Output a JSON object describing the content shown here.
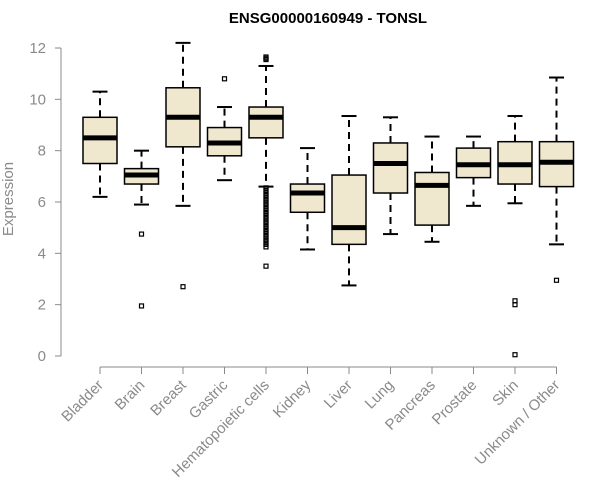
{
  "chart_data": {
    "type": "boxplot",
    "title": "ENSG00000160949 - TONSL",
    "ylabel": "Expression",
    "xlabel": "",
    "ylim": [
      0,
      12
    ],
    "yticks": [
      0,
      2,
      4,
      6,
      8,
      10,
      12
    ],
    "grid": false,
    "box_fill": "#efe8cf",
    "box_stroke": "#000000",
    "categories": [
      "Bladder",
      "Brain",
      "Breast",
      "Gastric",
      "Hematopoietic cells",
      "Kidney",
      "Liver",
      "Lung",
      "Pancreas",
      "Prostate",
      "Skin",
      "Unknown / Other"
    ],
    "boxes": [
      {
        "name": "Bladder",
        "whisker_low": 6.2,
        "q1": 7.5,
        "median": 8.5,
        "q3": 9.3,
        "whisker_high": 10.3,
        "outliers": []
      },
      {
        "name": "Brain",
        "whisker_low": 5.9,
        "q1": 6.7,
        "median": 7.05,
        "q3": 7.3,
        "whisker_high": 8.0,
        "outliers": [
          4.75,
          1.95
        ]
      },
      {
        "name": "Breast",
        "whisker_low": 5.85,
        "q1": 8.15,
        "median": 9.3,
        "q3": 10.45,
        "whisker_high": 12.2,
        "outliers": [
          2.7
        ]
      },
      {
        "name": "Gastric",
        "whisker_low": 6.85,
        "q1": 7.8,
        "median": 8.3,
        "q3": 8.9,
        "whisker_high": 9.7,
        "outliers": [
          10.8
        ]
      },
      {
        "name": "Hematopoietic cells",
        "whisker_low": 6.6,
        "q1": 8.5,
        "median": 9.3,
        "q3": 9.7,
        "whisker_high": 11.3,
        "outliers": [
          11.65,
          11.6,
          11.55,
          6.55,
          6.45,
          6.35,
          6.25,
          6.15,
          6.05,
          5.95,
          5.85,
          5.75,
          5.65,
          5.55,
          5.45,
          5.35,
          5.25,
          5.15,
          5.05,
          4.95,
          4.85,
          4.75,
          4.65,
          4.55,
          4.45,
          4.35,
          4.25,
          3.5
        ]
      },
      {
        "name": "Kidney",
        "whisker_low": 4.15,
        "q1": 5.6,
        "median": 6.35,
        "q3": 6.7,
        "whisker_high": 8.1,
        "outliers": []
      },
      {
        "name": "Liver",
        "whisker_low": 2.75,
        "q1": 4.35,
        "median": 5.0,
        "q3": 7.05,
        "whisker_high": 9.35,
        "outliers": []
      },
      {
        "name": "Lung",
        "whisker_low": 4.75,
        "q1": 6.35,
        "median": 7.5,
        "q3": 8.3,
        "whisker_high": 9.3,
        "outliers": []
      },
      {
        "name": "Pancreas",
        "whisker_low": 4.45,
        "q1": 5.1,
        "median": 6.65,
        "q3": 7.15,
        "whisker_high": 8.55,
        "outliers": []
      },
      {
        "name": "Prostate",
        "whisker_low": 5.85,
        "q1": 6.95,
        "median": 7.45,
        "q3": 8.1,
        "whisker_high": 8.55,
        "outliers": []
      },
      {
        "name": "Skin",
        "whisker_low": 5.95,
        "q1": 6.7,
        "median": 7.45,
        "q3": 8.35,
        "whisker_high": 9.35,
        "outliers": [
          2.15,
          2.0,
          0.05
        ]
      },
      {
        "name": "Unknown / Other",
        "whisker_low": 4.35,
        "q1": 6.6,
        "median": 7.55,
        "q3": 8.35,
        "whisker_high": 10.85,
        "outliers": [
          2.95
        ]
      }
    ]
  }
}
